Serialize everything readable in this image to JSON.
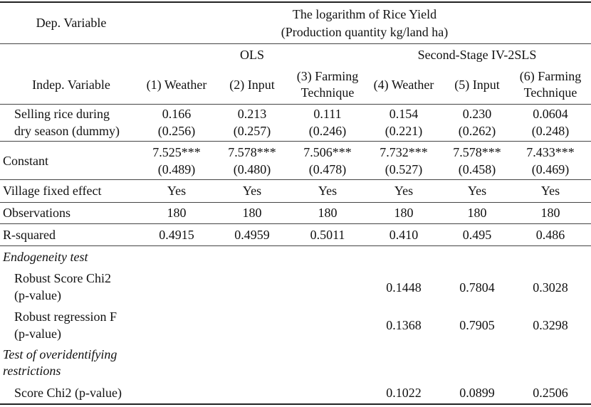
{
  "header": {
    "dep_variable_label": "Dep. Variable",
    "dep_title_line1": "The logarithm of Rice Yield",
    "dep_title_line2": "(Production quantity kg/land ha)",
    "ols_label": "OLS",
    "iv_label": "Second-Stage IV-2SLS",
    "indep_variable_label": "Indep. Variable",
    "columns": [
      {
        "line1": "(1) Weather",
        "line2": ""
      },
      {
        "line1": "(2) Input",
        "line2": ""
      },
      {
        "line1": "(3) Farming",
        "line2": "Technique"
      },
      {
        "line1": "(4) Weather",
        "line2": ""
      },
      {
        "line1": "(5) Input",
        "line2": ""
      },
      {
        "line1": "(6) Farming",
        "line2": "Technique"
      }
    ]
  },
  "rows": {
    "selling": {
      "label_line1": "Selling rice during",
      "label_line2": "dry season (dummy)",
      "coef": [
        "0.166",
        "0.213",
        "0.111",
        "0.154",
        "0.230",
        "0.0604"
      ],
      "se": [
        "(0.256)",
        "(0.257)",
        "(0.246)",
        "(0.221)",
        "(0.262)",
        "(0.248)"
      ]
    },
    "constant": {
      "label": "Constant",
      "coef": [
        "7.525***",
        "7.578***",
        "7.506***",
        "7.732***",
        "7.578***",
        "7.433***"
      ],
      "se": [
        "(0.489)",
        "(0.480)",
        "(0.478)",
        "(0.527)",
        "(0.458)",
        "(0.469)"
      ]
    },
    "village": {
      "label": "Village fixed effect",
      "values": [
        "Yes",
        "Yes",
        "Yes",
        "Yes",
        "Yes",
        "Yes"
      ]
    },
    "observations": {
      "label": "Observations",
      "values": [
        "180",
        "180",
        "180",
        "180",
        "180",
        "180"
      ]
    },
    "rsquared": {
      "label": "R-squared",
      "values": [
        "0.4915",
        "0.4959",
        "0.5011",
        "0.410",
        "0.495",
        "0.486"
      ]
    },
    "endogeneity": {
      "title": "Endogeneity test",
      "robust_score": {
        "label_line1": "Robust Score Chi2",
        "label_line2": "(p-value)",
        "values": [
          "0.1448",
          "0.7804",
          "0.3028"
        ]
      },
      "robust_regression": {
        "label_line1": "Robust regression F",
        "label_line2": "(p-value)",
        "values": [
          "0.1368",
          "0.7905",
          "0.3298"
        ]
      }
    },
    "overid": {
      "title_line1": "Test of overidentifying",
      "title_line2": "restrictions",
      "score": {
        "label": "Score Chi2 (p-value)",
        "values": [
          "0.1022",
          "0.0899",
          "0.2506"
        ]
      }
    }
  }
}
